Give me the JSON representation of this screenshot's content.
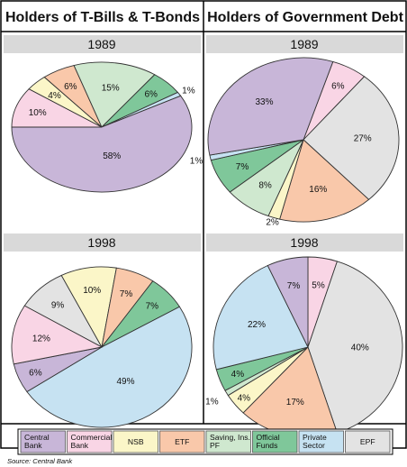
{
  "titles": {
    "left": "Holders of T-Bills & T-Bonds",
    "right": "Holders of Government Debt"
  },
  "source": "Source: Central Bank",
  "colors": {
    "central_bank": "#c8b6d8",
    "commercial_bank": "#f9d5e5",
    "nsb": "#fbf6c8",
    "etf": "#f9c8aa",
    "saving_ins_pf": "#cfe8cf",
    "official_funds": "#7fc79a",
    "private_sector": "#c6e2f2",
    "epf": "#e3e3e3",
    "header_band": "#d9d9d9",
    "frame": "#000000"
  },
  "legend": [
    {
      "key": "central_bank",
      "label": "Central Bank"
    },
    {
      "key": "commercial_bank",
      "label": "Commercial Bank"
    },
    {
      "key": "nsb",
      "label": "NSB"
    },
    {
      "key": "etf",
      "label": "ETF"
    },
    {
      "key": "saving_ins_pf",
      "label": "Saving, Ins. PF"
    },
    {
      "key": "official_funds",
      "label": "Official Funds"
    },
    {
      "key": "private_sector",
      "label": "Private Sector"
    },
    {
      "key": "epf",
      "label": "EPF"
    }
  ],
  "chart_data": [
    {
      "type": "pie",
      "group": "Holders of T-Bills & T-Bonds",
      "title": "1989",
      "slices": [
        {
          "key": "commercial_bank",
          "value": 10,
          "label": "10%"
        },
        {
          "key": "nsb",
          "value": 4,
          "label": "4%"
        },
        {
          "key": "etf",
          "value": 6,
          "label": "6%"
        },
        {
          "key": "saving_ins_pf",
          "value": 15,
          "label": "15%"
        },
        {
          "key": "official_funds",
          "value": 6,
          "label": "6%"
        },
        {
          "key": "private_sector",
          "value": 1,
          "label": "1%"
        },
        {
          "key": "central_bank",
          "value": 58,
          "label": "58%"
        }
      ]
    },
    {
      "type": "pie",
      "group": "Holders of Government Debt",
      "title": "1989",
      "slices": [
        {
          "key": "commercial_bank",
          "value": 6,
          "label": "6%"
        },
        {
          "key": "epf",
          "value": 27,
          "label": "27%"
        },
        {
          "key": "etf",
          "value": 16,
          "label": "16%"
        },
        {
          "key": "nsb",
          "value": 2,
          "label": "2%"
        },
        {
          "key": "saving_ins_pf",
          "value": 8,
          "label": "8%"
        },
        {
          "key": "official_funds",
          "value": 7,
          "label": "7%"
        },
        {
          "key": "private_sector",
          "value": 1,
          "label": "1%"
        },
        {
          "key": "central_bank",
          "value": 33,
          "label": "33%"
        }
      ]
    },
    {
      "type": "pie",
      "group": "Holders of T-Bills & T-Bonds",
      "title": "1998",
      "slices": [
        {
          "key": "epf",
          "value": 9,
          "label": "9%"
        },
        {
          "key": "nsb",
          "value": 10,
          "label": "10%"
        },
        {
          "key": "etf",
          "value": 7,
          "label": "7%"
        },
        {
          "key": "official_funds",
          "value": 7,
          "label": "7%"
        },
        {
          "key": "private_sector",
          "value": 49,
          "label": "49%"
        },
        {
          "key": "central_bank",
          "value": 6,
          "label": "6%"
        },
        {
          "key": "commercial_bank",
          "value": 12,
          "label": "12%"
        }
      ]
    },
    {
      "type": "pie",
      "group": "Holders of Government Debt",
      "title": "1998",
      "slices": [
        {
          "key": "commercial_bank",
          "value": 5,
          "label": "5%"
        },
        {
          "key": "epf",
          "value": 40,
          "label": "40%"
        },
        {
          "key": "etf",
          "value": 17,
          "label": "17%"
        },
        {
          "key": "nsb",
          "value": 4,
          "label": "4%"
        },
        {
          "key": "saving_ins_pf",
          "value": 1,
          "label": "1%"
        },
        {
          "key": "official_funds",
          "value": 4,
          "label": "4%"
        },
        {
          "key": "private_sector",
          "value": 22,
          "label": "22%"
        },
        {
          "key": "central_bank",
          "value": 7,
          "label": "7%"
        }
      ]
    }
  ]
}
